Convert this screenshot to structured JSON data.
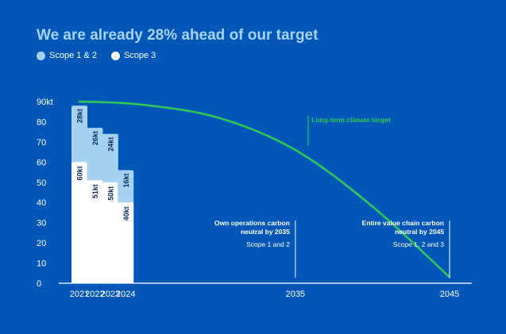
{
  "colors": {
    "background": "#0057b8",
    "scope12": "#a6d2f2",
    "scope3": "#ffffff",
    "target_line": "#2ecc55",
    "title": "#a6d2f2",
    "axis_text": "#ffffff"
  },
  "chart_data": {
    "type": "bar",
    "title": "We are already 28% ahead of our target",
    "legend": [
      {
        "name": "Scope 1 & 2"
      },
      {
        "name": "Scope 3"
      }
    ],
    "y_unit_label": "90kt",
    "ylim": [
      0,
      90
    ],
    "y_ticks": [
      "0",
      "10",
      "20",
      "30",
      "40",
      "50",
      "60",
      "70",
      "80"
    ],
    "x_range": [
      2021,
      2045
    ],
    "categories": [
      "2021",
      "2022",
      "2023",
      "2024"
    ],
    "series": [
      {
        "name": "Scope 3",
        "values": [
          60,
          51,
          50,
          40
        ],
        "labels": [
          "60kt",
          "51kt",
          "50kt",
          "40kt"
        ]
      },
      {
        "name": "Scope 1 & 2",
        "values": [
          28,
          26,
          24,
          16
        ],
        "labels": [
          "28kt",
          "26kt",
          "24kt",
          "16kt"
        ]
      }
    ],
    "extra_x_ticks": [
      "2035",
      "2045"
    ],
    "target_line": {
      "label": "Long-term climate target",
      "points": [
        [
          2021,
          90
        ],
        [
          2025,
          88.5
        ],
        [
          2030,
          82
        ],
        [
          2035,
          66
        ],
        [
          2040,
          38
        ],
        [
          2045,
          3
        ]
      ]
    },
    "milestones": [
      {
        "year": 2035,
        "title_lines": [
          "Own operations carbon",
          "neutral by 2035"
        ],
        "subtitle": "Scope 1 and 2"
      },
      {
        "year": 2045,
        "title_lines": [
          "Entire value chain carbon",
          "neutral by 2045"
        ],
        "subtitle": "Scope 1, 2 and 3"
      }
    ]
  }
}
